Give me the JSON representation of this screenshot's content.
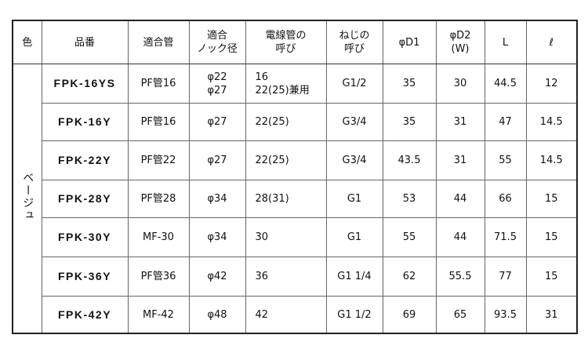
{
  "headers": [
    "色",
    "品番",
    "適合管",
    "適合\nノック径",
    "電線管の\n呼び",
    "ねじの\n呼び",
    "φD1",
    "φD2\n(W)",
    "L",
    "ℓ"
  ],
  "color_label": "ベージュ",
  "rows": [
    {
      "model": "FPK-16YS",
      "pipe": "PF管16",
      "knock": "φ22\nφ27",
      "conduit": "16\n22(25)兼用",
      "thread": "G1/2",
      "d1": "35",
      "d2": "30",
      "L": "44.5",
      "l": "12"
    },
    {
      "model": "FPK-16Y",
      "pipe": "PF管16",
      "knock": "φ27",
      "conduit": "22(25)",
      "thread": "G3/4",
      "d1": "35",
      "d2": "31",
      "L": "47",
      "l": "14.5"
    },
    {
      "model": "FPK-22Y",
      "pipe": "PF管22",
      "knock": "φ27",
      "conduit": "22(25)",
      "thread": "G3/4",
      "d1": "43.5",
      "d2": "31",
      "L": "55",
      "l": "14.5"
    },
    {
      "model": "FPK-28Y",
      "pipe": "PF管28",
      "knock": "φ34",
      "conduit": "28(31)",
      "thread": "G1",
      "d1": "53",
      "d2": "44",
      "L": "66",
      "l": "15"
    },
    {
      "model": "FPK-30Y",
      "pipe": "MF-30",
      "knock": "φ34",
      "conduit": "30",
      "thread": "G1",
      "d1": "55",
      "d2": "44",
      "L": "71.5",
      "l": "15"
    },
    {
      "model": "FPK-36Y",
      "pipe": "PF管36",
      "knock": "φ42",
      "conduit": "36",
      "thread": "G1 1/4",
      "d1": "62",
      "d2": "55.5",
      "L": "77",
      "l": "15"
    },
    {
      "model": "FPK-42Y",
      "pipe": "MF-42",
      "knock": "φ48",
      "conduit": "42",
      "thread": "G1 1/2",
      "d1": "69",
      "d2": "65",
      "L": "93.5",
      "l": "31"
    }
  ]
}
